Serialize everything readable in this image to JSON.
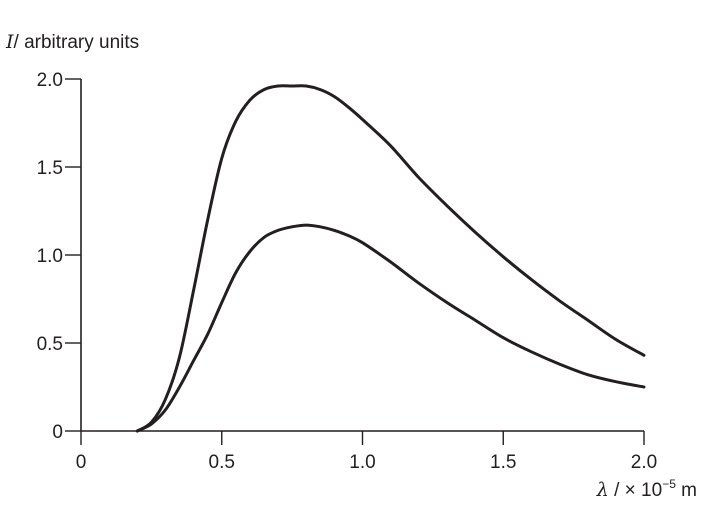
{
  "chart_data": {
    "type": "line",
    "ylabel": {
      "symbol": "I",
      "text": "/ arbitrary units"
    },
    "xlabel": {
      "symbol": "λ",
      "text": " / × 10",
      "exponent": "−5",
      "unit": " m"
    },
    "xlim": [
      0,
      2.0
    ],
    "ylim": [
      0,
      2.0
    ],
    "x_ticks": [
      0,
      0.5,
      1.0,
      1.5,
      2.0
    ],
    "x_tick_labels": [
      "0",
      "0.5",
      "1.0",
      "1.5",
      "2.0"
    ],
    "y_ticks": [
      0,
      0.5,
      1.0,
      1.5,
      2.0
    ],
    "y_tick_labels": [
      "0",
      "0.5",
      "1.0",
      "1.5",
      "2.0"
    ],
    "grid": false,
    "series": [
      {
        "x": [
          0.2,
          0.25,
          0.3,
          0.35,
          0.4,
          0.45,
          0.5,
          0.55,
          0.6,
          0.65,
          0.7,
          0.75,
          0.8,
          0.85,
          0.9,
          0.95,
          1.0,
          1.1,
          1.2,
          1.3,
          1.4,
          1.5,
          1.6,
          1.7,
          1.8,
          1.9,
          2.0
        ],
        "y": [
          0.0,
          0.05,
          0.18,
          0.42,
          0.8,
          1.2,
          1.55,
          1.76,
          1.88,
          1.94,
          1.96,
          1.96,
          1.96,
          1.94,
          1.9,
          1.84,
          1.77,
          1.62,
          1.44,
          1.28,
          1.13,
          0.99,
          0.86,
          0.74,
          0.63,
          0.52,
          0.43
        ]
      },
      {
        "x": [
          0.2,
          0.25,
          0.3,
          0.35,
          0.4,
          0.45,
          0.5,
          0.55,
          0.6,
          0.65,
          0.7,
          0.75,
          0.8,
          0.85,
          0.9,
          0.95,
          1.0,
          1.1,
          1.2,
          1.3,
          1.4,
          1.5,
          1.6,
          1.7,
          1.8,
          1.9,
          2.0
        ],
        "y": [
          0.0,
          0.04,
          0.12,
          0.25,
          0.4,
          0.55,
          0.73,
          0.9,
          1.02,
          1.1,
          1.14,
          1.16,
          1.17,
          1.16,
          1.14,
          1.11,
          1.07,
          0.96,
          0.84,
          0.73,
          0.63,
          0.53,
          0.45,
          0.38,
          0.32,
          0.28,
          0.25
        ]
      }
    ]
  }
}
